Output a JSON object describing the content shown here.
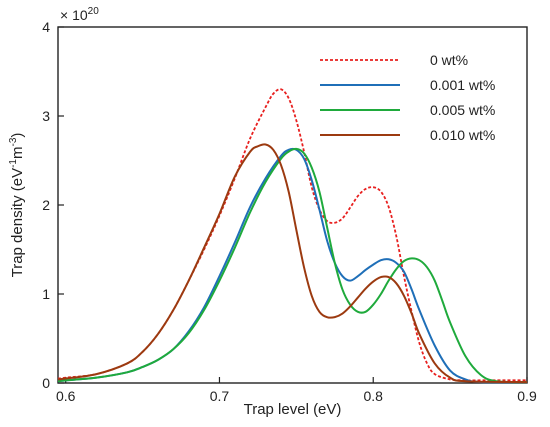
{
  "chart_data": {
    "type": "line",
    "xlabel": "Trap level (eV)",
    "ylabel": "Trap density (eV",
    "ylabel_sup": "-1",
    "ylabel_mid": "m",
    "ylabel_sup2": "-3",
    "ylabel_end": ")",
    "multiplier_base": "× 10",
    "multiplier_exp": "20",
    "xlim": [
      0.595,
      0.9
    ],
    "ylim": [
      0,
      4
    ],
    "xticks": [
      0.6,
      0.7,
      0.8,
      0.9
    ],
    "xtick_labels": [
      "0.6",
      "0.7",
      "0.8",
      "0.9"
    ],
    "yticks": [
      0,
      1,
      2,
      3,
      4
    ],
    "ytick_labels": [
      "0",
      "1",
      "2",
      "3",
      "4"
    ],
    "grid": false,
    "legend_position": "top-right",
    "series": [
      {
        "name": "0 wt%",
        "color": "#e8201f",
        "dash": "dotted",
        "x": [
          0.595,
          0.6,
          0.62,
          0.64,
          0.65,
          0.66,
          0.67,
          0.68,
          0.69,
          0.7,
          0.71,
          0.72,
          0.73,
          0.735,
          0.74,
          0.745,
          0.75,
          0.755,
          0.76,
          0.765,
          0.77,
          0.775,
          0.78,
          0.785,
          0.79,
          0.795,
          0.8,
          0.805,
          0.81,
          0.815,
          0.82,
          0.825,
          0.83,
          0.835,
          0.84,
          0.85,
          0.86,
          0.87,
          0.88,
          0.9
        ],
        "values": [
          0.05,
          0.06,
          0.1,
          0.22,
          0.35,
          0.55,
          0.82,
          1.15,
          1.5,
          1.88,
          2.3,
          2.75,
          3.1,
          3.25,
          3.3,
          3.2,
          2.95,
          2.6,
          2.2,
          1.95,
          1.82,
          1.8,
          1.85,
          1.97,
          2.1,
          2.18,
          2.2,
          2.15,
          1.98,
          1.65,
          1.2,
          0.8,
          0.45,
          0.22,
          0.1,
          0.04,
          0.03,
          0.03,
          0.03,
          0.03
        ]
      },
      {
        "name": "0.001 wt%",
        "color": "#1f6fb8",
        "dash": "solid",
        "x": [
          0.595,
          0.6,
          0.62,
          0.64,
          0.65,
          0.66,
          0.67,
          0.68,
          0.69,
          0.7,
          0.71,
          0.72,
          0.73,
          0.74,
          0.745,
          0.75,
          0.755,
          0.76,
          0.765,
          0.77,
          0.775,
          0.78,
          0.785,
          0.79,
          0.795,
          0.8,
          0.805,
          0.81,
          0.815,
          0.82,
          0.825,
          0.83,
          0.84,
          0.85,
          0.86,
          0.87,
          0.9
        ],
        "values": [
          0.02,
          0.03,
          0.06,
          0.12,
          0.18,
          0.26,
          0.38,
          0.58,
          0.85,
          1.2,
          1.58,
          1.98,
          2.3,
          2.55,
          2.62,
          2.62,
          2.52,
          2.28,
          1.95,
          1.6,
          1.35,
          1.2,
          1.15,
          1.2,
          1.27,
          1.33,
          1.38,
          1.39,
          1.35,
          1.25,
          1.05,
          0.82,
          0.42,
          0.14,
          0.04,
          0.01,
          0.01
        ]
      },
      {
        "name": "0.005 wt%",
        "color": "#1faa3c",
        "dash": "solid",
        "x": [
          0.595,
          0.6,
          0.62,
          0.64,
          0.65,
          0.66,
          0.67,
          0.68,
          0.69,
          0.7,
          0.71,
          0.72,
          0.73,
          0.74,
          0.745,
          0.75,
          0.755,
          0.76,
          0.765,
          0.77,
          0.775,
          0.78,
          0.785,
          0.79,
          0.795,
          0.8,
          0.805,
          0.81,
          0.815,
          0.82,
          0.825,
          0.83,
          0.835,
          0.84,
          0.845,
          0.85,
          0.86,
          0.87,
          0.88,
          0.9
        ],
        "values": [
          0.02,
          0.03,
          0.06,
          0.12,
          0.18,
          0.26,
          0.38,
          0.56,
          0.82,
          1.15,
          1.52,
          1.92,
          2.26,
          2.52,
          2.6,
          2.63,
          2.58,
          2.42,
          2.15,
          1.75,
          1.35,
          1.05,
          0.88,
          0.8,
          0.8,
          0.88,
          1.0,
          1.15,
          1.28,
          1.37,
          1.4,
          1.38,
          1.3,
          1.15,
          0.92,
          0.68,
          0.3,
          0.09,
          0.02,
          0.01
        ]
      },
      {
        "name": "0.010 wt%",
        "color": "#9c3a10",
        "dash": "solid",
        "x": [
          0.595,
          0.6,
          0.62,
          0.64,
          0.65,
          0.66,
          0.67,
          0.68,
          0.69,
          0.7,
          0.71,
          0.72,
          0.725,
          0.73,
          0.735,
          0.74,
          0.745,
          0.75,
          0.755,
          0.76,
          0.765,
          0.77,
          0.775,
          0.78,
          0.785,
          0.79,
          0.795,
          0.8,
          0.805,
          0.81,
          0.815,
          0.82,
          0.825,
          0.83,
          0.84,
          0.85,
          0.86,
          0.9
        ],
        "values": [
          0.04,
          0.05,
          0.1,
          0.22,
          0.35,
          0.55,
          0.82,
          1.15,
          1.52,
          1.9,
          2.32,
          2.6,
          2.66,
          2.68,
          2.62,
          2.45,
          2.15,
          1.72,
          1.3,
          0.98,
          0.8,
          0.74,
          0.74,
          0.78,
          0.86,
          0.96,
          1.06,
          1.14,
          1.19,
          1.19,
          1.12,
          0.98,
          0.78,
          0.55,
          0.22,
          0.06,
          0.02,
          0.01
        ]
      }
    ]
  }
}
